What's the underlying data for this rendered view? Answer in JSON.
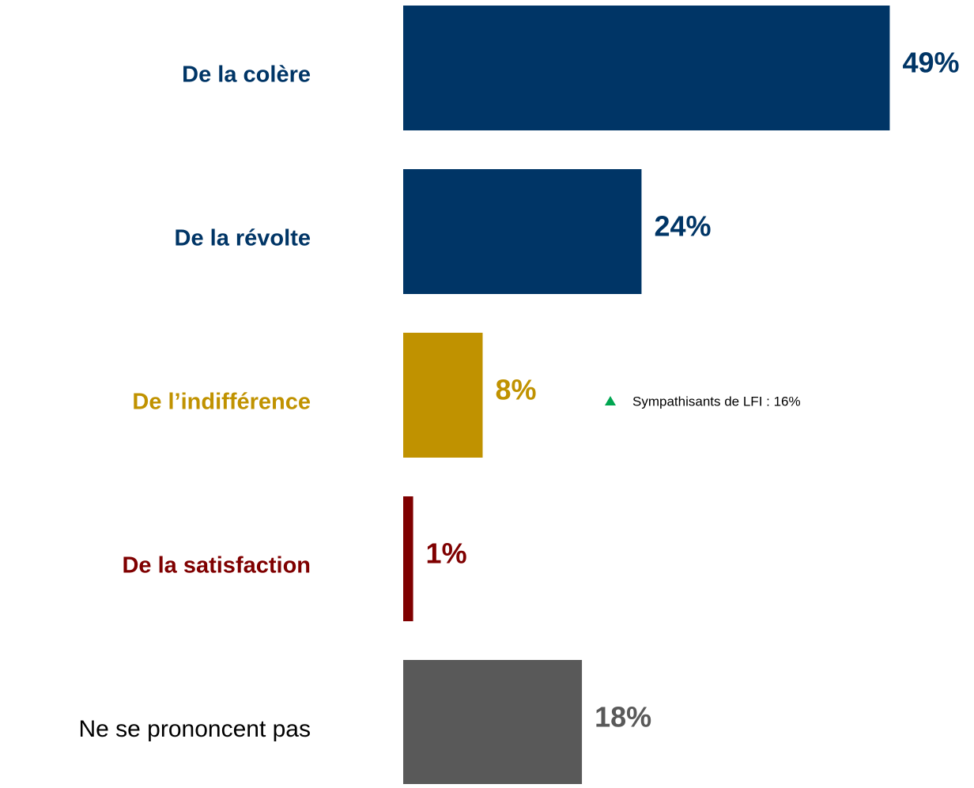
{
  "chart_data": {
    "type": "bar",
    "orientation": "horizontal",
    "categories": [
      "De la colère",
      "De la révolte",
      "De l’indifférence",
      "De la satisfaction",
      "Ne se prononcent pas"
    ],
    "values": [
      49,
      24,
      8,
      1,
      18
    ],
    "value_labels": [
      "49%",
      "24%",
      "8%",
      "1%",
      "18%"
    ],
    "colors": [
      "#003566",
      "#003566",
      "#c09200",
      "#7f0000",
      "#595959"
    ],
    "annotations": [
      {
        "text": "Sympathisants de LFI : 16%",
        "category": 2,
        "marker_color": "#00a651"
      }
    ]
  }
}
